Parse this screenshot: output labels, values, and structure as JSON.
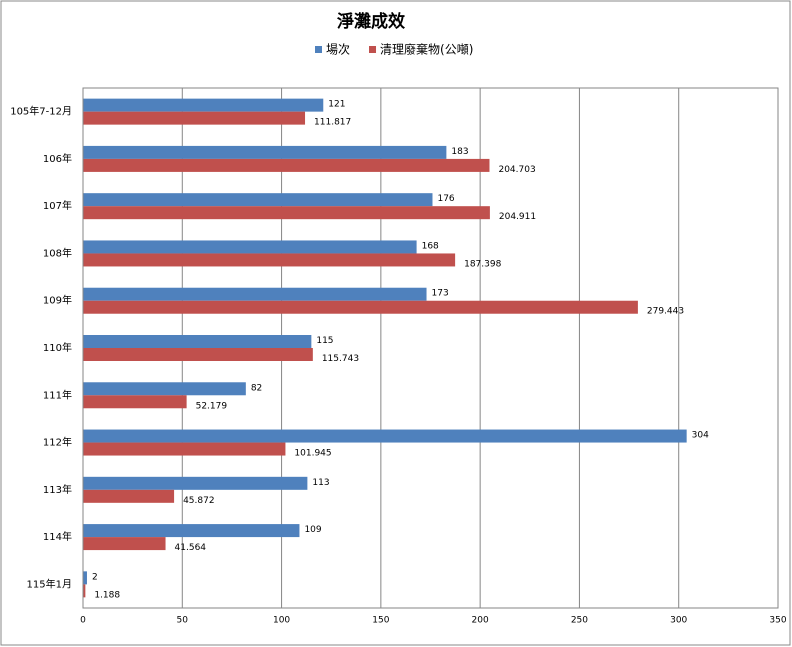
{
  "chart_data": {
    "type": "bar",
    "orientation": "horizontal",
    "title": "淨灘成效",
    "categories": [
      "105年7-12月",
      "106年",
      "107年",
      "108年",
      "109年",
      "110年",
      "111年",
      "112年",
      "113年",
      "114年",
      "115年1月"
    ],
    "series": [
      {
        "name": "場次",
        "color": "#4f81bd",
        "values": [
          121,
          183,
          176,
          168,
          173,
          115,
          82,
          304,
          113,
          109,
          2
        ]
      },
      {
        "name": "清理廢棄物(公噸)",
        "color": "#c0504d",
        "values": [
          111.817,
          204.703,
          204.911,
          187.398,
          279.443,
          115.743,
          52.179,
          101.945,
          45.872,
          41.564,
          1.188
        ]
      }
    ],
    "xlim": [
      0,
      350
    ],
    "xticks": [
      0,
      50,
      100,
      150,
      200,
      250,
      300,
      350
    ],
    "grid": true
  }
}
